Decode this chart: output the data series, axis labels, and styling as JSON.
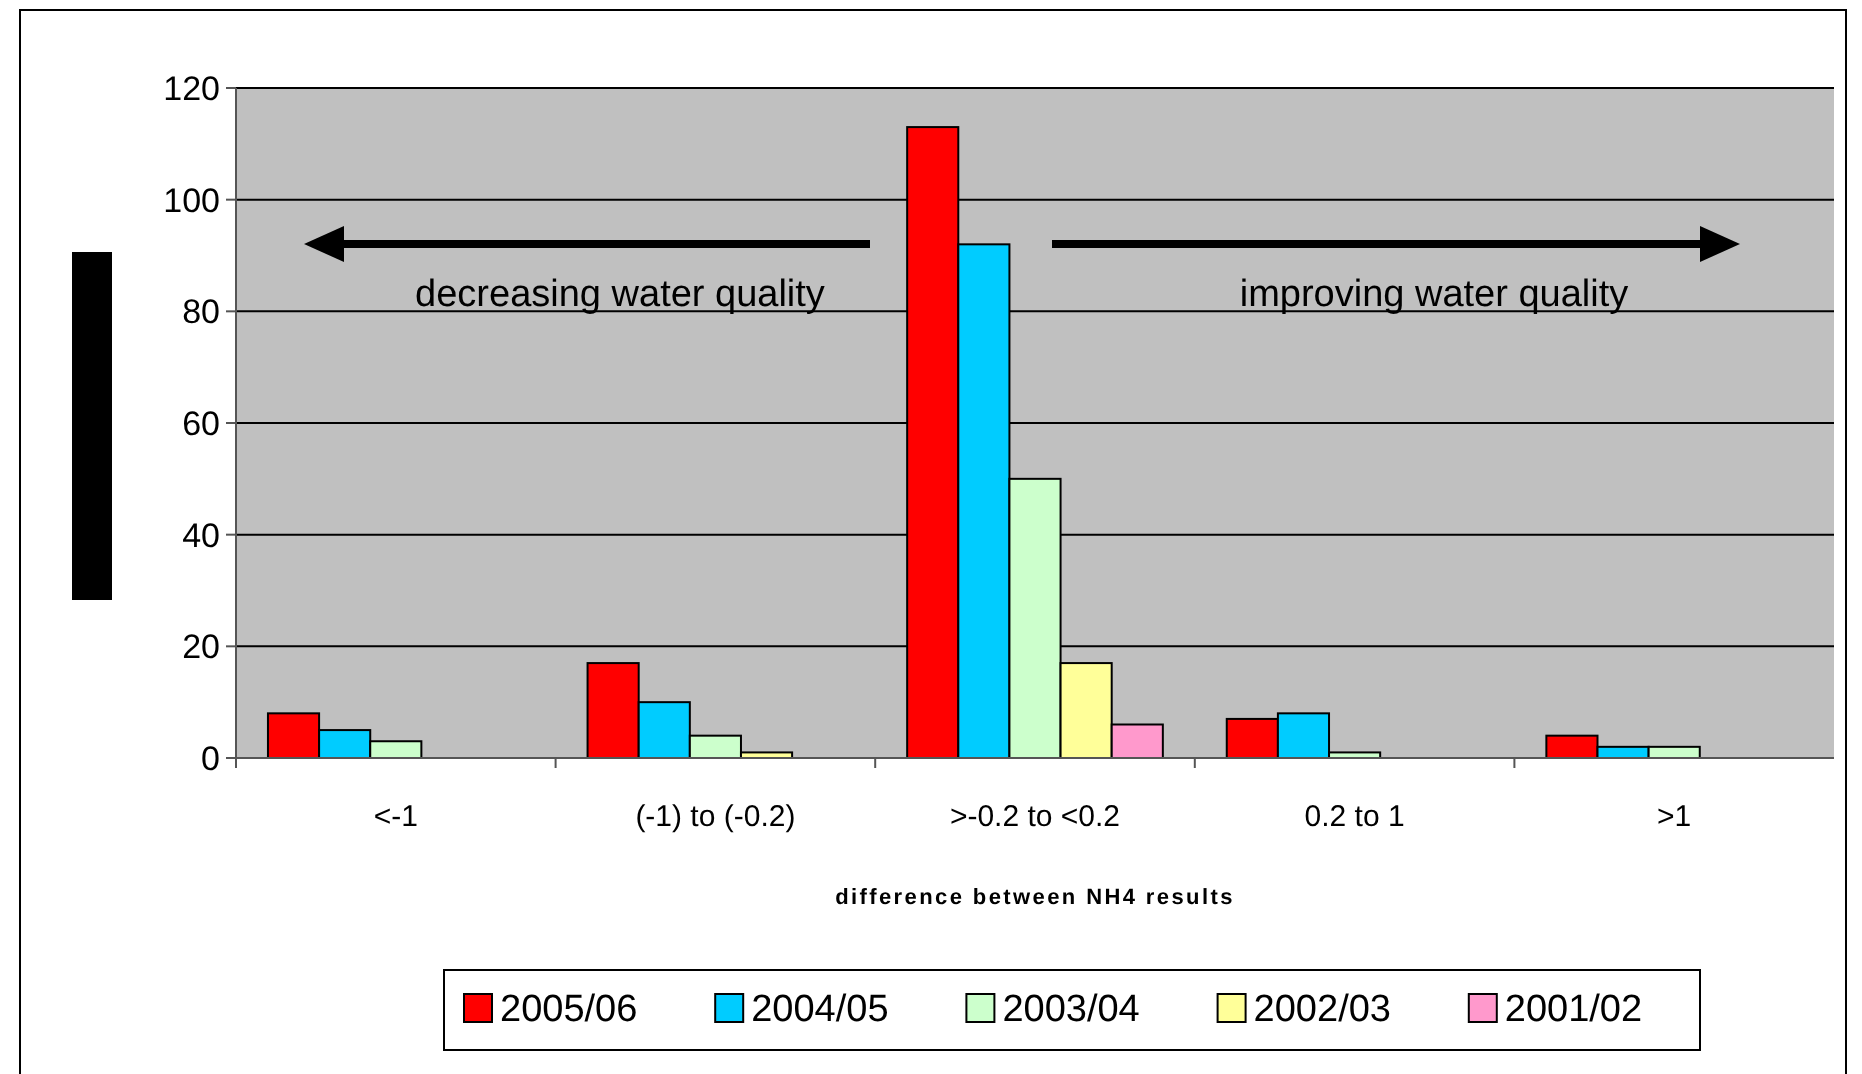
{
  "chart_data": {
    "type": "bar",
    "xlabel": "difference between NH4 results",
    "categories": [
      "<-1",
      "(-1) to (-0.2)",
      ">-0.2 to <0.2",
      "0.2 to 1",
      ">1"
    ],
    "series": [
      {
        "name": "2005/06",
        "color": "#ff0000",
        "values": [
          8,
          17,
          113,
          7,
          4
        ]
      },
      {
        "name": "2004/05",
        "color": "#00ccff",
        "values": [
          5,
          10,
          92,
          8,
          2
        ]
      },
      {
        "name": "2003/04",
        "color": "#ccffcc",
        "values": [
          3,
          4,
          50,
          1,
          2
        ]
      },
      {
        "name": "2002/03",
        "color": "#ffff99",
        "values": [
          0,
          1,
          17,
          0,
          0
        ]
      },
      {
        "name": "2001/02",
        "color": "#ff99cc",
        "values": [
          0,
          0,
          6,
          0,
          0
        ]
      }
    ],
    "ylim": [
      0,
      120
    ],
    "yticks": [
      0,
      20,
      40,
      60,
      80,
      100,
      120
    ],
    "grid": "y",
    "legend": "bottom",
    "annotations": [
      "decreasing water quality",
      "improving water quality"
    ]
  }
}
